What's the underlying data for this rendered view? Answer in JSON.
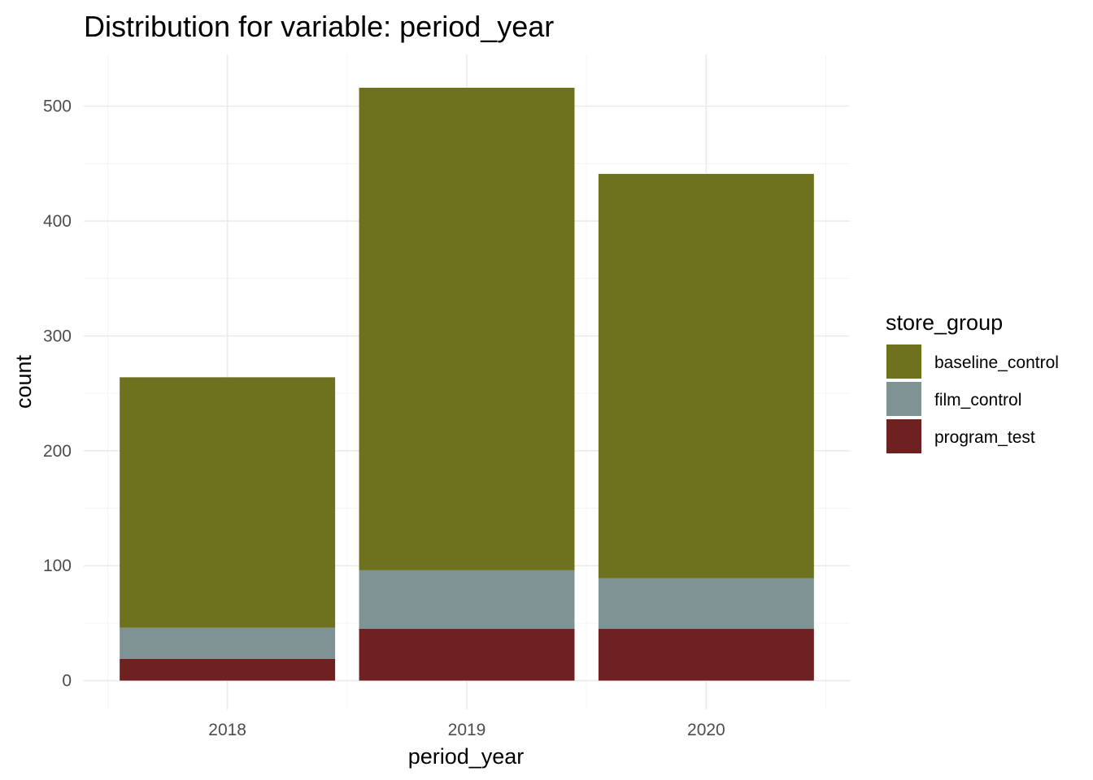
{
  "chart_data": {
    "type": "bar",
    "stacked": true,
    "title": "Distribution for variable: period_year",
    "xlabel": "period_year",
    "ylabel": "count",
    "categories": [
      "2018",
      "2019",
      "2020"
    ],
    "series": [
      {
        "name": "program_test",
        "color": "#6f2020",
        "values": [
          19,
          45,
          45
        ]
      },
      {
        "name": "film_control",
        "color": "#7f9294",
        "values": [
          27,
          51,
          44
        ]
      },
      {
        "name": "baseline_control",
        "color": "#6e711e",
        "values": [
          218,
          420,
          352
        ]
      }
    ],
    "yticks": [
      0,
      100,
      200,
      300,
      400,
      500
    ],
    "ylim": [
      -25,
      545
    ],
    "grid": true,
    "legend": {
      "title": "store_group",
      "position": "right",
      "items": [
        "baseline_control",
        "film_control",
        "program_test"
      ]
    }
  }
}
